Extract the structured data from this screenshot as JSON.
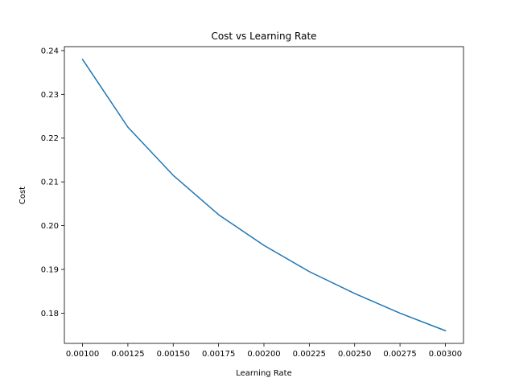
{
  "chart_data": {
    "type": "line",
    "title": "Cost vs Learning Rate",
    "xlabel": "Learning Rate",
    "ylabel": "Cost",
    "xlim": [
      0.0009,
      0.0031
    ],
    "ylim": [
      0.1731,
      0.2409
    ],
    "grid": false,
    "legend": "none",
    "x_ticks": [
      {
        "value": 0.001,
        "label": "0.00100"
      },
      {
        "value": 0.00125,
        "label": "0.00125"
      },
      {
        "value": 0.0015,
        "label": "0.00150"
      },
      {
        "value": 0.00175,
        "label": "0.00175"
      },
      {
        "value": 0.002,
        "label": "0.00200"
      },
      {
        "value": 0.00225,
        "label": "0.00225"
      },
      {
        "value": 0.0025,
        "label": "0.00250"
      },
      {
        "value": 0.00275,
        "label": "0.00275"
      },
      {
        "value": 0.003,
        "label": "0.00300"
      }
    ],
    "y_ticks": [
      {
        "value": 0.18,
        "label": "0.18"
      },
      {
        "value": 0.19,
        "label": "0.19"
      },
      {
        "value": 0.2,
        "label": "0.20"
      },
      {
        "value": 0.21,
        "label": "0.21"
      },
      {
        "value": 0.22,
        "label": "0.22"
      },
      {
        "value": 0.23,
        "label": "0.23"
      },
      {
        "value": 0.24,
        "label": "0.24"
      }
    ],
    "series": [
      {
        "color": "#1f77b4",
        "x": [
          0.001,
          0.00125,
          0.0015,
          0.00175,
          0.002,
          0.00225,
          0.0025,
          0.00275,
          0.003
        ],
        "y": [
          0.238,
          0.2225,
          0.2115,
          0.2025,
          0.1955,
          0.1895,
          0.1845,
          0.18,
          0.176
        ]
      }
    ]
  }
}
